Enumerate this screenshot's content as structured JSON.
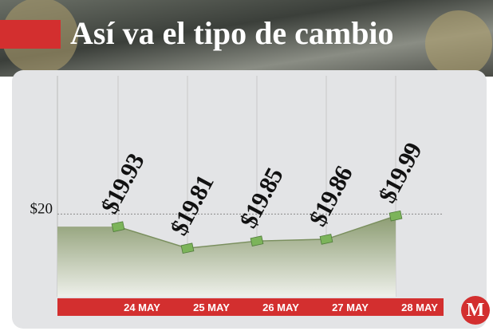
{
  "chart_data": {
    "type": "area",
    "title": "Así va el tipo de cambio",
    "categories": [
      "24 MAY",
      "25 MAY",
      "26 MAY",
      "27 MAY",
      "28 MAY"
    ],
    "values": [
      19.93,
      19.81,
      19.85,
      19.86,
      19.99
    ],
    "value_labels": [
      "$19.93",
      "$19.81",
      "$19.85",
      "$19.86",
      "$19.99"
    ],
    "color": "#7a8f5e",
    "ylim": [
      19.54,
      20.77
    ],
    "yticks": [
      {
        "value": 20,
        "label": "$20"
      }
    ],
    "logo": "M"
  }
}
